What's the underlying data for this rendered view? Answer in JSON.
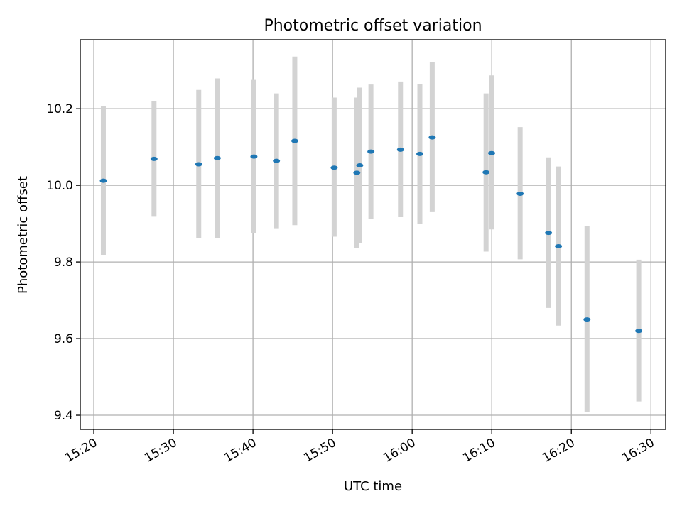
{
  "chart_data": {
    "type": "scatter",
    "title": "Photometric offset variation",
    "xlabel": "UTC time",
    "ylabel": "Photometric offset",
    "xlim": [
      "15:18:18",
      "16:31:51"
    ],
    "ylim": [
      9.363,
      10.38
    ],
    "grid": true,
    "x_ticks": [
      "15:20",
      "15:30",
      "15:40",
      "15:50",
      "16:00",
      "16:10",
      "16:20",
      "16:30"
    ],
    "y_ticks": [
      9.4,
      9.6,
      9.8,
      10.0,
      10.2
    ],
    "y_tick_labels": [
      "9.4",
      "9.6",
      "9.8",
      "10.0",
      "10.2"
    ],
    "point_color": "#1f77b4",
    "error_bar_color": "#d3d3d3",
    "points": [
      {
        "time": "15:21:12",
        "offset": 10.012,
        "low": 9.818,
        "high": 10.207
      },
      {
        "time": "15:27:34",
        "offset": 10.069,
        "low": 9.918,
        "high": 10.22
      },
      {
        "time": "15:33:11",
        "offset": 10.055,
        "low": 9.863,
        "high": 10.249
      },
      {
        "time": "15:35:31",
        "offset": 10.071,
        "low": 9.863,
        "high": 10.279
      },
      {
        "time": "15:40:07",
        "offset": 10.075,
        "low": 9.875,
        "high": 10.275
      },
      {
        "time": "15:42:57",
        "offset": 10.064,
        "low": 9.888,
        "high": 10.24
      },
      {
        "time": "15:45:15",
        "offset": 10.116,
        "low": 9.896,
        "high": 10.336
      },
      {
        "time": "15:50:12",
        "offset": 10.046,
        "low": 9.866,
        "high": 10.229
      },
      {
        "time": "15:53:03",
        "offset": 10.033,
        "low": 9.837,
        "high": 10.229
      },
      {
        "time": "15:53:25",
        "offset": 10.052,
        "low": 9.85,
        "high": 10.255
      },
      {
        "time": "15:54:49",
        "offset": 10.088,
        "low": 9.913,
        "high": 10.263
      },
      {
        "time": "15:58:32",
        "offset": 10.093,
        "low": 9.917,
        "high": 10.271
      },
      {
        "time": "16:00:58",
        "offset": 10.082,
        "low": 9.9,
        "high": 10.264
      },
      {
        "time": "16:02:31",
        "offset": 10.125,
        "low": 9.93,
        "high": 10.322
      },
      {
        "time": "16:09:17",
        "offset": 10.034,
        "low": 9.827,
        "high": 10.24
      },
      {
        "time": "16:09:59",
        "offset": 10.084,
        "low": 9.885,
        "high": 10.287
      },
      {
        "time": "16:13:34",
        "offset": 9.978,
        "low": 9.807,
        "high": 10.152
      },
      {
        "time": "16:17:08",
        "offset": 9.876,
        "low": 9.68,
        "high": 10.073
      },
      {
        "time": "16:18:23",
        "offset": 9.841,
        "low": 9.634,
        "high": 10.049
      },
      {
        "time": "16:21:58",
        "offset": 9.65,
        "low": 9.409,
        "high": 9.893
      },
      {
        "time": "16:28:28",
        "offset": 9.62,
        "low": 9.436,
        "high": 9.806
      }
    ]
  }
}
